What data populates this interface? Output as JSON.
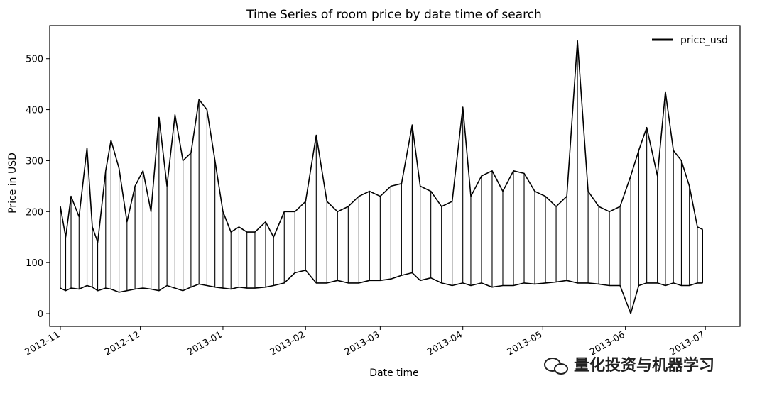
{
  "chart_data": {
    "type": "line",
    "title": "Time Series of room price by date time of search",
    "xlabel": "Date time",
    "ylabel": "Price in USD",
    "x_ticks": [
      "2012-11",
      "2012-12",
      "2013-01",
      "2013-02",
      "2013-03",
      "2013-04",
      "2013-05",
      "2013-06",
      "2013-07"
    ],
    "y_ticks": [
      0,
      100,
      200,
      300,
      400,
      500
    ],
    "xlim": [
      "2012-10-28",
      "2013-07-14"
    ],
    "ylim": [
      -25,
      565
    ],
    "legend": "top-right",
    "grid": false,
    "color": "#000000",
    "series": [
      {
        "name": "price_usd",
        "x": [
          "2012-11-01",
          "2012-11-03",
          "2012-11-05",
          "2012-11-08",
          "2012-11-11",
          "2012-11-13",
          "2012-11-15",
          "2012-11-18",
          "2012-11-20",
          "2012-11-23",
          "2012-11-26",
          "2012-11-29",
          "2012-12-02",
          "2012-12-05",
          "2012-12-08",
          "2012-12-11",
          "2012-12-14",
          "2012-12-17",
          "2012-12-20",
          "2012-12-23",
          "2012-12-26",
          "2012-12-29",
          "2013-01-01",
          "2013-01-04",
          "2013-01-07",
          "2013-01-10",
          "2013-01-13",
          "2013-01-17",
          "2013-01-20",
          "2013-01-24",
          "2013-01-28",
          "2013-02-01",
          "2013-02-05",
          "2013-02-09",
          "2013-02-13",
          "2013-02-17",
          "2013-02-21",
          "2013-02-25",
          "2013-03-01",
          "2013-03-05",
          "2013-03-09",
          "2013-03-13",
          "2013-03-16",
          "2013-03-20",
          "2013-03-24",
          "2013-03-28",
          "2013-04-01",
          "2013-04-04",
          "2013-04-08",
          "2013-04-12",
          "2013-04-16",
          "2013-04-20",
          "2013-04-24",
          "2013-04-28",
          "2013-05-02",
          "2013-05-06",
          "2013-05-10",
          "2013-05-14",
          "2013-05-18",
          "2013-05-22",
          "2013-05-26",
          "2013-05-30",
          "2013-06-03",
          "2013-06-06",
          "2013-06-09",
          "2013-06-13",
          "2013-06-16",
          "2013-06-19",
          "2013-06-22",
          "2013-06-25",
          "2013-06-28",
          "2013-06-30"
        ],
        "upper": [
          210,
          150,
          230,
          190,
          325,
          170,
          140,
          280,
          340,
          285,
          180,
          250,
          280,
          200,
          385,
          250,
          390,
          300,
          315,
          420,
          400,
          300,
          200,
          160,
          170,
          160,
          160,
          180,
          150,
          200,
          200,
          220,
          350,
          220,
          200,
          210,
          230,
          240,
          230,
          250,
          255,
          370,
          250,
          240,
          210,
          220,
          405,
          230,
          270,
          280,
          240,
          280,
          275,
          240,
          230,
          210,
          230,
          535,
          240,
          210,
          200,
          210,
          270,
          320,
          365,
          270,
          435,
          320,
          300,
          250,
          170,
          165
        ],
        "lower": [
          50,
          45,
          50,
          48,
          55,
          52,
          45,
          50,
          48,
          42,
          45,
          48,
          50,
          48,
          45,
          55,
          50,
          45,
          52,
          58,
          55,
          52,
          50,
          48,
          52,
          50,
          50,
          52,
          55,
          60,
          80,
          85,
          60,
          60,
          65,
          60,
          60,
          65,
          65,
          68,
          75,
          80,
          65,
          70,
          60,
          55,
          60,
          55,
          60,
          52,
          55,
          55,
          60,
          58,
          60,
          62,
          65,
          60,
          60,
          58,
          55,
          55,
          0,
          55,
          60,
          60,
          55,
          60,
          55,
          55,
          60,
          60
        ]
      }
    ]
  },
  "watermark": {
    "icon": "wechat-icon",
    "text": "量化投资与机器学习"
  }
}
